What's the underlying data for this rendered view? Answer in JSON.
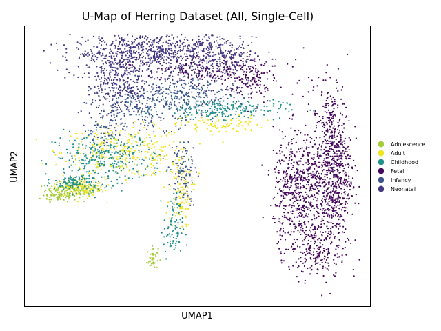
{
  "chart_data": {
    "type": "scatter",
    "title": "U-Map of Herring Dataset (All, Single-Cell)",
    "xlabel": "UMAP1",
    "ylabel": "UMAP2",
    "xlim": [
      0,
      100
    ],
    "ylim": [
      0,
      100
    ],
    "ticks_visible": false,
    "grid": false,
    "legend_position": "right",
    "series": [
      {
        "name": "Adolescence",
        "color": "#a5cd3a",
        "regions": [
          {
            "x": 14,
            "y": 41.5,
            "sx": 4,
            "sy": 1.2,
            "n": 140
          },
          {
            "x": 10,
            "y": 39.2,
            "sx": 2.6,
            "sy": 0.9,
            "n": 60
          },
          {
            "x": 37,
            "y": 17,
            "sx": 0.8,
            "sy": 2.0,
            "n": 40
          }
        ]
      },
      {
        "name": "Adult",
        "color": "#f1e51d",
        "regions": [
          {
            "x": 29,
            "y": 55,
            "sx": 9,
            "sy": 4.5,
            "n": 320
          },
          {
            "x": 16,
            "y": 42.5,
            "sx": 3.5,
            "sy": 1.8,
            "n": 110
          },
          {
            "x": 45,
            "y": 41,
            "sx": 1.6,
            "sy": 6.5,
            "n": 120
          },
          {
            "x": 57,
            "y": 64.8,
            "sx": 6,
            "sy": 1.6,
            "n": 90
          }
        ]
      },
      {
        "name": "Childhood",
        "color": "#20908c",
        "regions": [
          {
            "x": 24,
            "y": 53,
            "sx": 8,
            "sy": 4.5,
            "n": 300
          },
          {
            "x": 15,
            "y": 44,
            "sx": 3.2,
            "sy": 1.6,
            "n": 110
          },
          {
            "x": 57,
            "y": 70.5,
            "sx": 9,
            "sy": 1.8,
            "n": 220
          },
          {
            "x": 43,
            "y": 28,
            "sx": 1.4,
            "sy": 6,
            "n": 90
          }
        ]
      },
      {
        "name": "Fetal",
        "color": "#46085c",
        "regions": [
          {
            "x": 89,
            "y": 49,
            "sx": 2.8,
            "sy": 15,
            "n": 800
          },
          {
            "x": 79,
            "y": 41,
            "sx": 3.5,
            "sy": 10.5,
            "n": 550
          },
          {
            "x": 84,
            "y": 20,
            "sx": 3.5,
            "sy": 4,
            "n": 160
          },
          {
            "x": 55,
            "y": 84,
            "sx": 10,
            "sy": 3,
            "n": 260
          },
          {
            "x": 66,
            "y": 79,
            "sx": 3.2,
            "sy": 3.4,
            "n": 90
          }
        ]
      },
      {
        "name": "Infancy",
        "color": "#39558c",
        "regions": [
          {
            "x": 36,
            "y": 72,
            "sx": 8,
            "sy": 4.2,
            "n": 280
          },
          {
            "x": 50,
            "y": 77,
            "sx": 6,
            "sy": 3,
            "n": 150
          },
          {
            "x": 46,
            "y": 48,
            "sx": 1.8,
            "sy": 5.5,
            "n": 100
          },
          {
            "x": 23,
            "y": 63,
            "sx": 3,
            "sy": 3,
            "n": 60
          }
        ]
      },
      {
        "name": "Neonatal",
        "color": "#453882",
        "regions": [
          {
            "x": 38,
            "y": 91,
            "sx": 12,
            "sy": 3.8,
            "n": 720
          },
          {
            "x": 27,
            "y": 80,
            "sx": 5,
            "sy": 6,
            "n": 320
          },
          {
            "x": 57,
            "y": 89,
            "sx": 6,
            "sy": 3,
            "n": 180
          }
        ]
      }
    ]
  }
}
